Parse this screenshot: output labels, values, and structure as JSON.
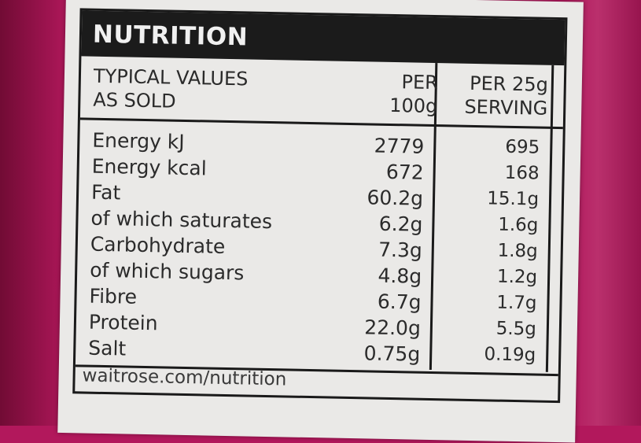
{
  "header": {
    "title": "NUTRITION"
  },
  "columns": {
    "label_line1": "TYPICAL VALUES",
    "label_line2": "AS SOLD",
    "per100_line1": "PER",
    "per100_line2": "100g",
    "per25_line1": "PER 25g",
    "per25_line2": "SERVING"
  },
  "rows": [
    {
      "name": "Energy kJ",
      "per100": "2779",
      "per25": "695"
    },
    {
      "name": "Energy kcal",
      "per100": "672",
      "per25": "168"
    },
    {
      "name": "Fat",
      "per100": "60.2g",
      "per25": "15.1g"
    },
    {
      "name": "of which saturates",
      "per100": "6.2g",
      "per25": "1.6g"
    },
    {
      "name": "Carbohydrate",
      "per100": "7.3g",
      "per25": "1.8g"
    },
    {
      "name": "of which sugars",
      "per100": "4.8g",
      "per25": "1.2g"
    },
    {
      "name": "Fibre",
      "per100": "6.7g",
      "per25": "1.7g"
    },
    {
      "name": "Protein",
      "per100": "22.0g",
      "per25": "5.5g"
    },
    {
      "name": "Salt",
      "per100": "0.75g",
      "per25": "0.19g"
    }
  ],
  "footer": {
    "url": "waitrose.com/nutrition"
  }
}
